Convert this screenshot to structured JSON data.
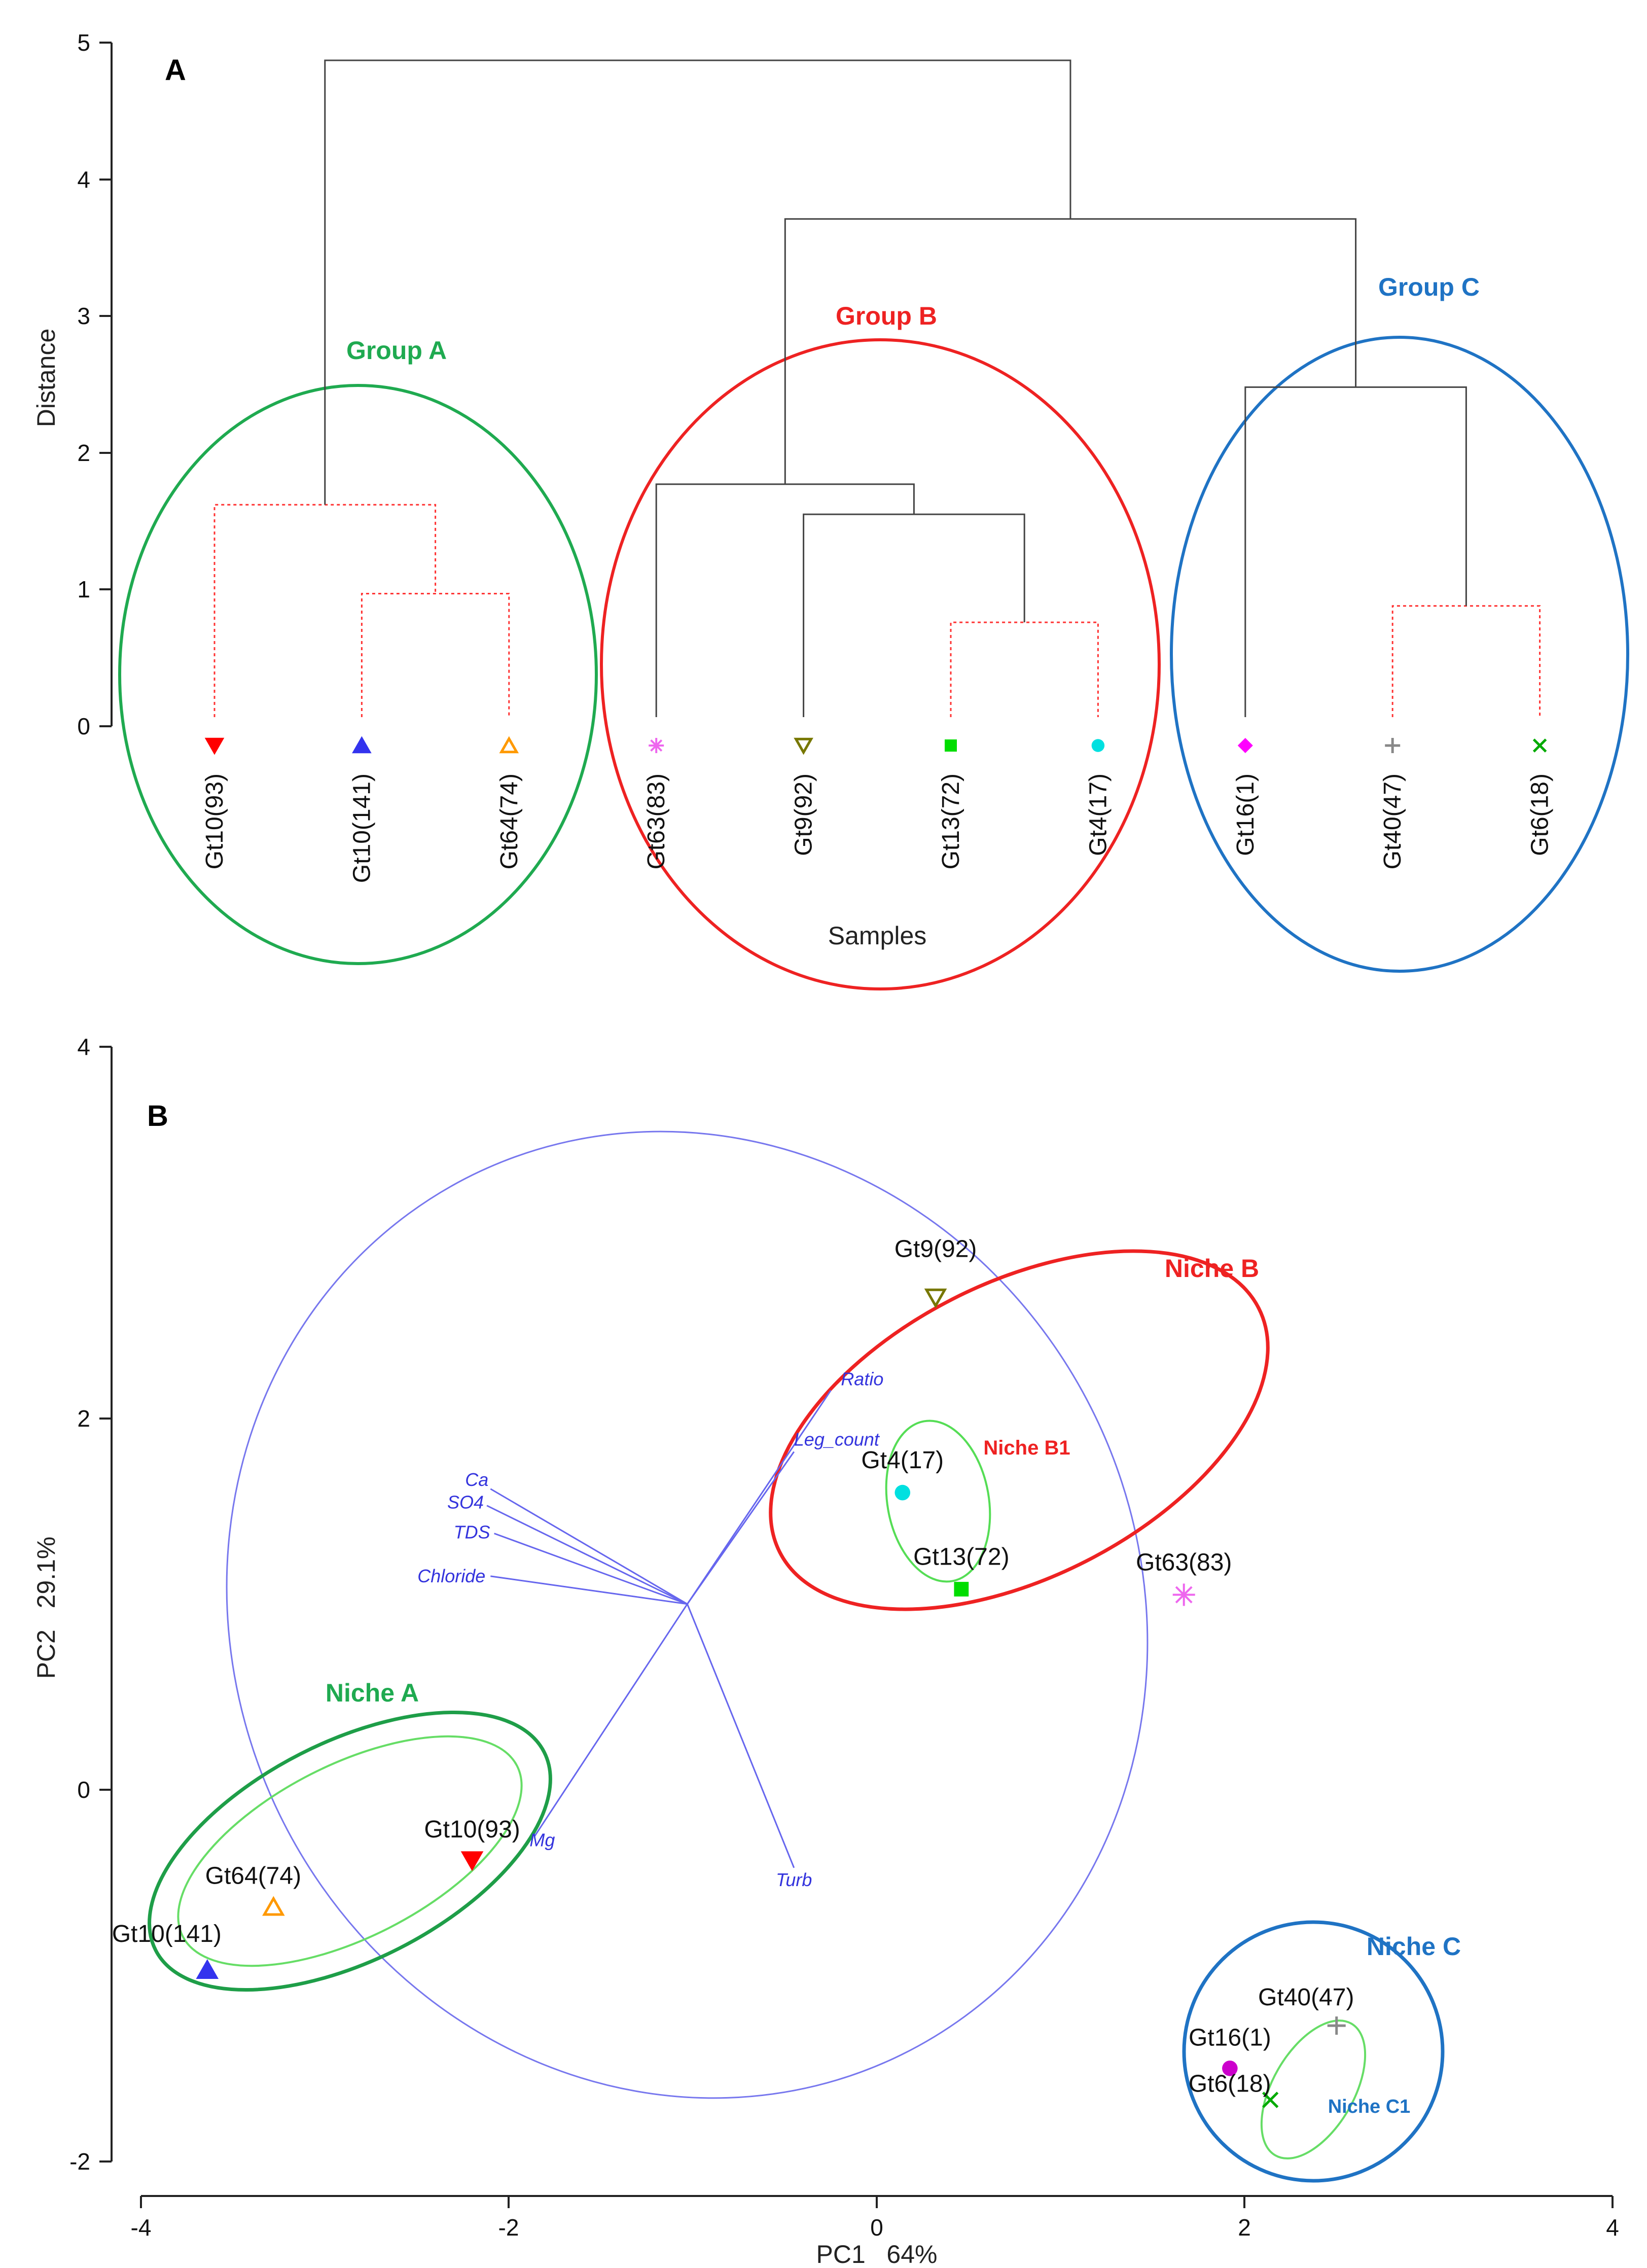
{
  "chart_data": [
    {
      "type": "dendrogram",
      "panel_label": "A",
      "ylabel": "Distance",
      "xlabel": "Samples",
      "ylim": [
        0,
        5
      ],
      "yticks": [
        "0",
        "1",
        "2",
        "3",
        "4",
        "5"
      ],
      "leaves": [
        {
          "label": "Gt10(93)",
          "color": "#ff0000",
          "marker": "triangle-down"
        },
        {
          "label": "Gt10(141)",
          "color": "#3333ee",
          "marker": "triangle-up"
        },
        {
          "label": "Gt64(74)",
          "color": "#ff9900",
          "marker": "triangle-up-open"
        },
        {
          "label": "Gt63(83)",
          "color": "#ee66ee",
          "marker": "asterisk"
        },
        {
          "label": "Gt9(92)",
          "color": "#777700",
          "marker": "triangle-down-open"
        },
        {
          "label": "Gt13(72)",
          "color": "#00dd00",
          "marker": "square"
        },
        {
          "label": "Gt4(17)",
          "color": "#00e0e0",
          "marker": "circle"
        },
        {
          "label": "Gt16(1)",
          "color": "#ff00ff",
          "marker": "diamond"
        },
        {
          "label": "Gt40(47)",
          "color": "#888888",
          "marker": "plus"
        },
        {
          "label": "Gt6(18)",
          "color": "#00aa00",
          "marker": "cross"
        }
      ],
      "merges": [
        {
          "a": 1,
          "b": 2,
          "height": 0.97,
          "style": "dotted"
        },
        {
          "a": 0,
          "b": "m0",
          "height": 1.62,
          "style": "dotted"
        },
        {
          "a": 5,
          "b": 6,
          "height": 0.76,
          "style": "dotted"
        },
        {
          "a": 4,
          "b": "m2",
          "height": 1.55,
          "style": "solid"
        },
        {
          "a": 3,
          "b": "m3",
          "height": 1.77,
          "style": "solid"
        },
        {
          "a": 8,
          "b": 9,
          "height": 0.88,
          "style": "dotted"
        },
        {
          "a": 7,
          "b": "m5",
          "height": 2.48,
          "style": "solid"
        },
        {
          "a": "m4",
          "b": "m6",
          "height": 3.71,
          "style": "solid"
        },
        {
          "a": "m1",
          "b": "m7",
          "height": 4.87,
          "style": "solid"
        }
      ],
      "groups": [
        {
          "label": "Group A",
          "color": "#1faa50"
        },
        {
          "label": "Group B",
          "color": "#ee2222"
        },
        {
          "label": "Group C",
          "color": "#1f73c4"
        }
      ]
    },
    {
      "type": "scatter",
      "panel_label": "B",
      "xlabel": "PC1   64%",
      "ylabel": "PC2   29.1%",
      "xlim": [
        -4,
        4
      ],
      "ylim": [
        -2,
        4
      ],
      "xticks": [
        "-4",
        "-2",
        "0",
        "2",
        "4"
      ],
      "yticks": [
        "-2",
        "0",
        "2",
        "4"
      ],
      "points": [
        {
          "label": "Gt9(92)",
          "x": 0.32,
          "y": 2.65,
          "color": "#777700",
          "marker": "triangle-down-open"
        },
        {
          "label": "Gt4(17)",
          "x": 0.14,
          "y": 1.6,
          "color": "#00e0e0",
          "marker": "circle"
        },
        {
          "label": "Gt13(72)",
          "x": 0.46,
          "y": 1.08,
          "color": "#00dd00",
          "marker": "square"
        },
        {
          "label": "Gt63(83)",
          "x": 1.67,
          "y": 1.05,
          "color": "#ee66ee",
          "marker": "asterisk"
        },
        {
          "label": "Gt10(93)",
          "x": -2.2,
          "y": -0.38,
          "color": "#ff0000",
          "marker": "triangle-down"
        },
        {
          "label": "Gt64(74)",
          "x": -3.28,
          "y": -0.63,
          "color": "#ff9900",
          "marker": "triangle-up-open"
        },
        {
          "label": "Gt10(141)",
          "x": -3.64,
          "y": -0.97,
          "color": "#3333ee",
          "marker": "triangle-up"
        },
        {
          "label": "Gt40(47)",
          "x": 2.5,
          "y": -1.27,
          "color": "#888888",
          "marker": "plus"
        },
        {
          "label": "Gt16(1)",
          "x": 1.92,
          "y": -1.5,
          "color": "#cc00cc",
          "marker": "circle"
        },
        {
          "label": "Gt6(18)",
          "x": 2.14,
          "y": -1.67,
          "color": "#00aa00",
          "marker": "cross"
        }
      ],
      "loadings": {
        "origin": [
          -1.03,
          1.0
        ],
        "vectors": [
          {
            "label": "Ratio",
            "x": -0.25,
            "y": 2.15
          },
          {
            "label": "Leg_count",
            "x": -0.45,
            "y": 1.82
          },
          {
            "label": "Ca",
            "x": -2.1,
            "y": 1.62
          },
          {
            "label": "SO4",
            "x": -2.12,
            "y": 1.53
          },
          {
            "label": "TDS",
            "x": -2.08,
            "y": 1.38
          },
          {
            "label": "Chloride",
            "x": -2.1,
            "y": 1.15
          },
          {
            "label": "Mg",
            "x": -1.86,
            "y": -0.25
          },
          {
            "label": "Turb",
            "x": -0.45,
            "y": -0.42
          }
        ]
      },
      "niches": [
        {
          "label": "Niche A",
          "color": "#1e9e48"
        },
        {
          "label": "Niche B",
          "color": "#ee2222"
        },
        {
          "label": "Niche B1",
          "color": "#ee2222"
        },
        {
          "label": "Niche C",
          "color": "#1f73c4"
        },
        {
          "label": "Niche C1",
          "color": "#1f73c4"
        }
      ]
    }
  ]
}
